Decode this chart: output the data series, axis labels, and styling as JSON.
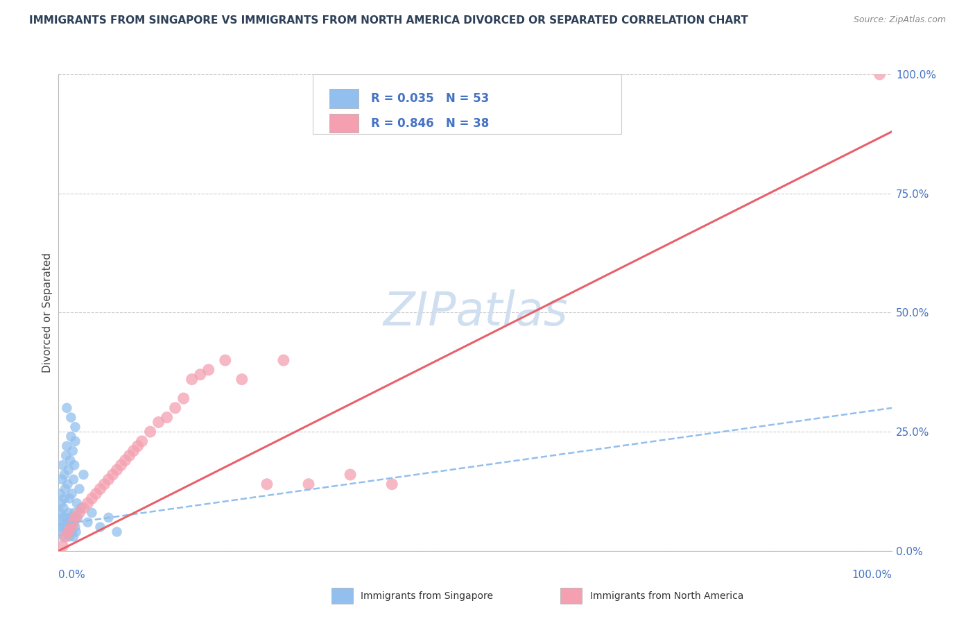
{
  "title": "IMMIGRANTS FROM SINGAPORE VS IMMIGRANTS FROM NORTH AMERICA DIVORCED OR SEPARATED CORRELATION CHART",
  "source_text": "Source: ZipAtlas.com",
  "ylabel": "Divorced or Separated",
  "legend_blue_label": "Immigrants from Singapore",
  "legend_pink_label": "Immigrants from North America",
  "R_blue": 0.035,
  "N_blue": 53,
  "R_pink": 0.846,
  "N_pink": 38,
  "blue_color": "#92BFED",
  "pink_color": "#F4A0B0",
  "blue_line_color": "#92BFED",
  "pink_line_color": "#E8606A",
  "title_color": "#2E4057",
  "axis_label_color": "#4472C4",
  "right_tick_color": "#4472C4",
  "watermark_color": "#D0DFF0",
  "background_color": "#FFFFFF",
  "grid_color": "#CCCCCC",
  "xlim": [
    0.0,
    1.0
  ],
  "ylim": [
    0.0,
    1.0
  ],
  "x_tick_labels": [
    "0.0%",
    "100.0%"
  ],
  "y_ticks_right": [
    0.0,
    0.25,
    0.5,
    0.75,
    1.0
  ],
  "y_tick_labels_right": [
    "0.0%",
    "25.0%",
    "50.0%",
    "75.0%",
    "100.0%"
  ],
  "blue_scatter_x": [
    0.001,
    0.002,
    0.002,
    0.003,
    0.003,
    0.004,
    0.004,
    0.005,
    0.005,
    0.006,
    0.006,
    0.007,
    0.007,
    0.008,
    0.008,
    0.009,
    0.009,
    0.01,
    0.01,
    0.011,
    0.011,
    0.012,
    0.012,
    0.013,
    0.013,
    0.014,
    0.014,
    0.015,
    0.015,
    0.016,
    0.016,
    0.017,
    0.017,
    0.018,
    0.018,
    0.019,
    0.019,
    0.02,
    0.02,
    0.021,
    0.022,
    0.023,
    0.025,
    0.027,
    0.03,
    0.035,
    0.04,
    0.05,
    0.06,
    0.07,
    0.015,
    0.01,
    0.02
  ],
  "blue_scatter_y": [
    0.05,
    0.08,
    0.12,
    0.04,
    0.1,
    0.06,
    0.15,
    0.07,
    0.18,
    0.03,
    0.09,
    0.11,
    0.16,
    0.05,
    0.13,
    0.07,
    0.2,
    0.04,
    0.22,
    0.06,
    0.14,
    0.08,
    0.17,
    0.03,
    0.11,
    0.05,
    0.19,
    0.07,
    0.24,
    0.04,
    0.12,
    0.06,
    0.21,
    0.03,
    0.15,
    0.08,
    0.18,
    0.05,
    0.23,
    0.04,
    0.1,
    0.07,
    0.13,
    0.09,
    0.16,
    0.06,
    0.08,
    0.05,
    0.07,
    0.04,
    0.28,
    0.3,
    0.26
  ],
  "pink_scatter_x": [
    0.005,
    0.008,
    0.012,
    0.015,
    0.018,
    0.02,
    0.025,
    0.03,
    0.035,
    0.04,
    0.045,
    0.05,
    0.055,
    0.06,
    0.065,
    0.07,
    0.075,
    0.08,
    0.085,
    0.09,
    0.095,
    0.1,
    0.11,
    0.12,
    0.13,
    0.14,
    0.15,
    0.16,
    0.17,
    0.18,
    0.2,
    0.22,
    0.25,
    0.27,
    0.3,
    0.35,
    0.4,
    0.985
  ],
  "pink_scatter_y": [
    0.01,
    0.03,
    0.04,
    0.05,
    0.06,
    0.07,
    0.08,
    0.09,
    0.1,
    0.11,
    0.12,
    0.13,
    0.14,
    0.15,
    0.16,
    0.17,
    0.18,
    0.19,
    0.2,
    0.21,
    0.22,
    0.23,
    0.25,
    0.27,
    0.28,
    0.3,
    0.32,
    0.36,
    0.37,
    0.38,
    0.4,
    0.36,
    0.14,
    0.4,
    0.14,
    0.16,
    0.14,
    1.0
  ],
  "blue_line_x": [
    0.0,
    1.0
  ],
  "blue_line_y_start": 0.055,
  "blue_line_y_end": 0.3,
  "pink_line_x": [
    0.0,
    1.0
  ],
  "pink_line_y_start": 0.0,
  "pink_line_y_end": 0.88
}
